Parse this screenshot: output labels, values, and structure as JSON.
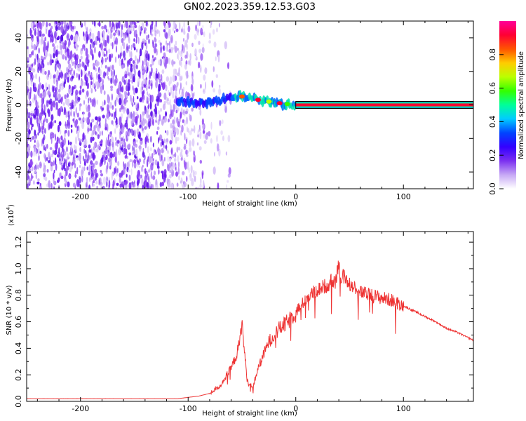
{
  "title": "GN02.2023.359.12.53.G03",
  "chart_data": [
    {
      "type": "heatmap",
      "xlabel": "Height of straight line (km)",
      "ylabel": "Frequency (Hz)",
      "xlim": [
        -250,
        165
      ],
      "ylim": [
        -50,
        50
      ],
      "xticks": [
        -200,
        -100,
        0,
        100
      ],
      "yticks": [
        -40,
        -20,
        0,
        20,
        40
      ],
      "noise_region_x": [
        -250,
        -85
      ],
      "carrier_offset": [
        {
          "x": -110,
          "y": 2.5
        },
        {
          "x": -100,
          "y": 1.5
        },
        {
          "x": -90,
          "y": 1.0
        },
        {
          "x": -80,
          "y": 1.5
        },
        {
          "x": -70,
          "y": 3.0
        },
        {
          "x": -60,
          "y": 5.0
        },
        {
          "x": -50,
          "y": 5.0
        },
        {
          "x": -40,
          "y": 4.0
        },
        {
          "x": -30,
          "y": 2.5
        },
        {
          "x": -20,
          "y": 1.5
        },
        {
          "x": -10,
          "y": 0.5
        },
        {
          "x": 0,
          "y": 0.0
        },
        {
          "x": 100,
          "y": 0.0
        },
        {
          "x": 165,
          "y": 0.0
        }
      ],
      "colorbar": {
        "label": "Normalized spectral amplitude",
        "range": [
          0.0,
          1.0
        ],
        "ticks": [
          0.0,
          0.2,
          0.4,
          0.6,
          0.8
        ],
        "colors": [
          "#ffffff",
          "#c7a8f5",
          "#7b2ff0",
          "#3300ff",
          "#0044ff",
          "#00ccff",
          "#00ff99",
          "#33ff00",
          "#bbff00",
          "#ffcc00",
          "#ff5500",
          "#ff0033",
          "#ff0099"
        ]
      }
    },
    {
      "type": "line",
      "xlabel": "Height of straight line (km)",
      "ylabel": "SNR (10 * v/v)",
      "multiplier": "(x10",
      "multiplier_exp": "4",
      "xlim": [
        -250,
        165
      ],
      "ylim": [
        0.0,
        1.28
      ],
      "xticks": [
        -200,
        -100,
        0,
        100
      ],
      "yticks": [
        "0.0",
        "0.2",
        "0.4",
        "0.6",
        "0.8",
        "1.0",
        "1.2"
      ],
      "line_color": "#ee3333",
      "series": [
        {
          "name": "SNR",
          "x": [
            -250,
            -200,
            -150,
            -110,
            -100,
            -90,
            -80,
            -70,
            -60,
            -55,
            -52,
            -50,
            -48,
            -45,
            -40,
            -35,
            -30,
            -25,
            -20,
            -15,
            -10,
            -5,
            0,
            5,
            10,
            20,
            30,
            38,
            40,
            42,
            45,
            50,
            55,
            60,
            70,
            80,
            90,
            95,
            100,
            110,
            120,
            130,
            140,
            150,
            165
          ],
          "y": [
            0.02,
            0.02,
            0.02,
            0.02,
            0.03,
            0.04,
            0.06,
            0.12,
            0.25,
            0.35,
            0.45,
            0.6,
            0.4,
            0.15,
            0.1,
            0.25,
            0.35,
            0.45,
            0.5,
            0.55,
            0.58,
            0.62,
            0.68,
            0.72,
            0.78,
            0.84,
            0.88,
            0.95,
            1.05,
            0.92,
            0.95,
            0.88,
            0.85,
            0.82,
            0.8,
            0.78,
            0.76,
            0.74,
            0.72,
            0.68,
            0.64,
            0.6,
            0.55,
            0.52,
            0.46
          ]
        }
      ]
    }
  ]
}
